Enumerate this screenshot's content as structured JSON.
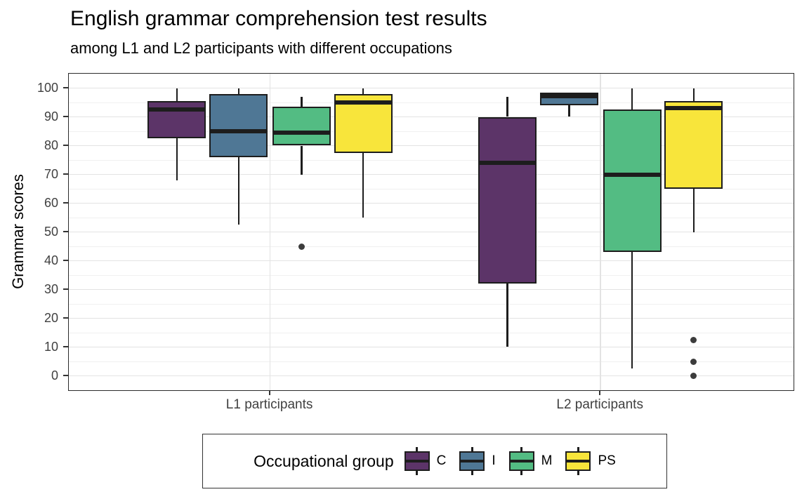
{
  "chart_data": {
    "type": "boxplot",
    "title": "English grammar comprehension test results",
    "subtitle": "among L1 and L2 participants with different occupations",
    "ylabel": "Grammar scores",
    "xlabel": "",
    "ylim": [
      -5,
      105
    ],
    "y_major_ticks": [
      0,
      10,
      20,
      30,
      40,
      50,
      60,
      70,
      80,
      90,
      100
    ],
    "y_minor_gridlines": [
      5,
      15,
      25,
      35,
      45,
      55,
      65,
      75,
      85,
      95
    ],
    "categories": [
      "L1 participants",
      "L2 participants"
    ],
    "grid": "on",
    "legend": {
      "title": "Occupational group",
      "position": "bottom"
    },
    "series": [
      {
        "name": "C",
        "color": "#5C3468",
        "boxes": [
          {
            "category": "L1 participants",
            "min": 68,
            "q1": 82.5,
            "median": 92.5,
            "q3": 95.5,
            "max": 100,
            "outliers": []
          },
          {
            "category": "L2 participants",
            "min": 10,
            "q1": 32,
            "median": 74,
            "q3": 90,
            "max": 97,
            "outliers": []
          }
        ]
      },
      {
        "name": "I",
        "color": "#4F7795",
        "boxes": [
          {
            "category": "L1 participants",
            "min": 52.5,
            "q1": 76,
            "median": 85,
            "q3": 98,
            "max": 100,
            "outliers": []
          },
          {
            "category": "L2 participants",
            "min": 90,
            "q1": 94,
            "median": 97.3,
            "q3": 98.5,
            "max": 98.5,
            "outliers": []
          }
        ]
      },
      {
        "name": "M",
        "color": "#53BC83",
        "boxes": [
          {
            "category": "L1 participants",
            "min": 70,
            "q1": 80,
            "median": 84.5,
            "q3": 93.5,
            "max": 97,
            "outliers": [
              45
            ]
          },
          {
            "category": "L2 participants",
            "min": 2.5,
            "q1": 43,
            "median": 70,
            "q3": 92.5,
            "max": 100,
            "outliers": []
          }
        ]
      },
      {
        "name": "PS",
        "color": "#F8E53B",
        "boxes": [
          {
            "category": "L1 participants",
            "min": 55,
            "q1": 77.5,
            "median": 95,
            "q3": 98,
            "max": 100,
            "outliers": []
          },
          {
            "category": "L2 participants",
            "min": 50,
            "q1": 65,
            "median": 93,
            "q3": 95.5,
            "max": 100,
            "outliers": [
              12.5,
              5,
              0
            ]
          }
        ]
      }
    ],
    "style": {
      "box_line": "#1D1D1D",
      "grid_major": "#E3E3E3",
      "grid_minor": "#F0F0F0",
      "panel_border": "#2B2B2B",
      "axis_text": "#404040",
      "outlier": "#3C3C3C",
      "background": "#FFFFFF"
    }
  }
}
